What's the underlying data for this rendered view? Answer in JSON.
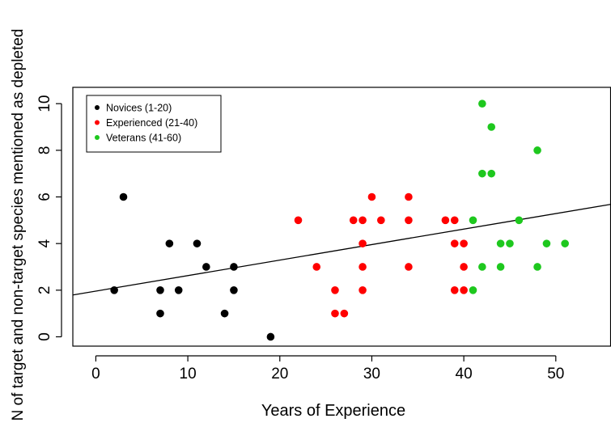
{
  "chart_data": {
    "type": "scatter",
    "title": "",
    "xlabel": "Years of Experience",
    "ylabel": "N of target and non-target species mentioned as depleted",
    "xlim": [
      -2.5,
      56
    ],
    "ylim": [
      -0.4,
      10.7
    ],
    "xticks": [
      0,
      10,
      20,
      30,
      40,
      50
    ],
    "yticks": [
      0,
      2,
      4,
      6,
      8,
      10
    ],
    "grid": false,
    "legend_position": "top-left",
    "series": [
      {
        "name": "Novices (1-20)",
        "color": "#000000",
        "points": [
          {
            "x": 2,
            "y": 2
          },
          {
            "x": 3,
            "y": 6
          },
          {
            "x": 7,
            "y": 2
          },
          {
            "x": 7,
            "y": 1
          },
          {
            "x": 8,
            "y": 4
          },
          {
            "x": 9,
            "y": 2
          },
          {
            "x": 11,
            "y": 4
          },
          {
            "x": 12,
            "y": 3
          },
          {
            "x": 14,
            "y": 1
          },
          {
            "x": 15,
            "y": 3
          },
          {
            "x": 15,
            "y": 2
          },
          {
            "x": 19,
            "y": 0
          }
        ]
      },
      {
        "name": "Experienced (21-40)",
        "color": "#ff0000",
        "points": [
          {
            "x": 22,
            "y": 5
          },
          {
            "x": 24,
            "y": 3
          },
          {
            "x": 26,
            "y": 2
          },
          {
            "x": 26,
            "y": 1
          },
          {
            "x": 27,
            "y": 1
          },
          {
            "x": 28,
            "y": 5
          },
          {
            "x": 29,
            "y": 5
          },
          {
            "x": 29,
            "y": 4
          },
          {
            "x": 29,
            "y": 3
          },
          {
            "x": 29,
            "y": 2
          },
          {
            "x": 30,
            "y": 6
          },
          {
            "x": 31,
            "y": 5
          },
          {
            "x": 34,
            "y": 6
          },
          {
            "x": 34,
            "y": 5
          },
          {
            "x": 34,
            "y": 3
          },
          {
            "x": 38,
            "y": 5
          },
          {
            "x": 39,
            "y": 5
          },
          {
            "x": 39,
            "y": 4
          },
          {
            "x": 39,
            "y": 2
          },
          {
            "x": 40,
            "y": 4
          },
          {
            "x": 40,
            "y": 3
          },
          {
            "x": 40,
            "y": 2
          }
        ]
      },
      {
        "name": "Veterans (41-60)",
        "color": "#1ec81e",
        "points": [
          {
            "x": 41,
            "y": 5
          },
          {
            "x": 41,
            "y": 2
          },
          {
            "x": 42,
            "y": 10
          },
          {
            "x": 42,
            "y": 7
          },
          {
            "x": 42,
            "y": 3
          },
          {
            "x": 43,
            "y": 9
          },
          {
            "x": 43,
            "y": 7
          },
          {
            "x": 44,
            "y": 4
          },
          {
            "x": 44,
            "y": 3
          },
          {
            "x": 45,
            "y": 4
          },
          {
            "x": 46,
            "y": 5
          },
          {
            "x": 48,
            "y": 8
          },
          {
            "x": 48,
            "y": 3
          },
          {
            "x": 49,
            "y": 4
          },
          {
            "x": 51,
            "y": 4
          }
        ]
      }
    ],
    "regression_line": {
      "intercept": 1.96,
      "slope": 0.0665,
      "color": "#000000"
    }
  }
}
